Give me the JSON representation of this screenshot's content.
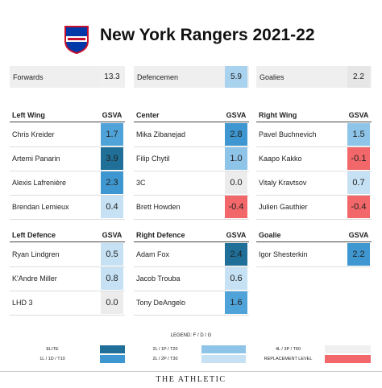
{
  "header": {
    "title": "New York Rangers 2021-22"
  },
  "summary": [
    {
      "label": "Forwards",
      "value": "13.3",
      "color": "#f0f0f0"
    },
    {
      "label": "Defencemen",
      "value": "5.9",
      "color": "#a9d2ee"
    },
    {
      "label": "Goalies",
      "value": "2.2",
      "color": "#e6e6e6"
    }
  ],
  "sections": [
    {
      "title": "Left Wing",
      "value_header": "GSVA",
      "rows": [
        {
          "name": "Chris Kreider",
          "value": "1.7",
          "color": "#4fa3d9"
        },
        {
          "name": "Artemi Panarin",
          "value": "3.9",
          "color": "#1f6f98"
        },
        {
          "name": "Alexis Lafrenière",
          "value": "2.3",
          "color": "#3e97d0"
        },
        {
          "name": "Brendan Lemieux",
          "value": "0.4",
          "color": "#c6e1f3"
        }
      ]
    },
    {
      "title": "Center",
      "value_header": "GSVA",
      "rows": [
        {
          "name": "Mika Zibanejad",
          "value": "2.8",
          "color": "#3e97d0"
        },
        {
          "name": "Filip Chytil",
          "value": "1.0",
          "color": "#8ec4e8"
        },
        {
          "name": "3C",
          "value": "0.0",
          "color": "#ececec"
        },
        {
          "name": "Brett Howden",
          "value": "-0.4",
          "color": "#f2676a"
        }
      ]
    },
    {
      "title": "Right Wing",
      "value_header": "GSVA",
      "rows": [
        {
          "name": "Pavel Buchnevich",
          "value": "1.5",
          "color": "#8ec4e8"
        },
        {
          "name": "Kaapo Kakko",
          "value": "-0.1",
          "color": "#f2676a"
        },
        {
          "name": "Vitaly Kravtsov",
          "value": "0.7",
          "color": "#c6e1f3"
        },
        {
          "name": "Julien Gauthier",
          "value": "-0.4",
          "color": "#f2676a"
        }
      ]
    },
    {
      "title": "Left Defence",
      "value_header": "GSVA",
      "rows": [
        {
          "name": "Ryan Lindgren",
          "value": "0.5",
          "color": "#c6e1f3"
        },
        {
          "name": "K'Andre Miller",
          "value": "0.8",
          "color": "#c6e1f3"
        },
        {
          "name": "LHD 3",
          "value": "0.0",
          "color": "#ececec"
        }
      ]
    },
    {
      "title": "Right Defence",
      "value_header": "GSVA",
      "rows": [
        {
          "name": "Adam Fox",
          "value": "2.4",
          "color": "#1f6f98"
        },
        {
          "name": "Jacob Trouba",
          "value": "0.6",
          "color": "#c6e1f3"
        },
        {
          "name": "Tony DeAngelo",
          "value": "1.6",
          "color": "#4fa3d9"
        }
      ]
    },
    {
      "title": "Goalie",
      "value_header": "GSVA",
      "rows": [
        {
          "name": "Igor Shesterkin",
          "value": "2.2",
          "color": "#3e97d0"
        }
      ]
    }
  ],
  "legend": {
    "title": "LEGEND: F / D / G",
    "items": [
      {
        "label": "ELITE",
        "color": "#1f6f98"
      },
      {
        "label": "1L / 1D / T10",
        "color": "#3e97d0"
      },
      {
        "label": "2L / 1P / T20",
        "color": "#8ec4e8"
      },
      {
        "label": "2L / 2P / T30",
        "color": "#c6e1f3"
      },
      {
        "label": "4L / 3P / T60",
        "color": "#f0f0f0"
      },
      {
        "label": "REPLACEMENT LEVEL",
        "color": "#f2676a"
      }
    ]
  },
  "footer": "THE ATHLETIC"
}
